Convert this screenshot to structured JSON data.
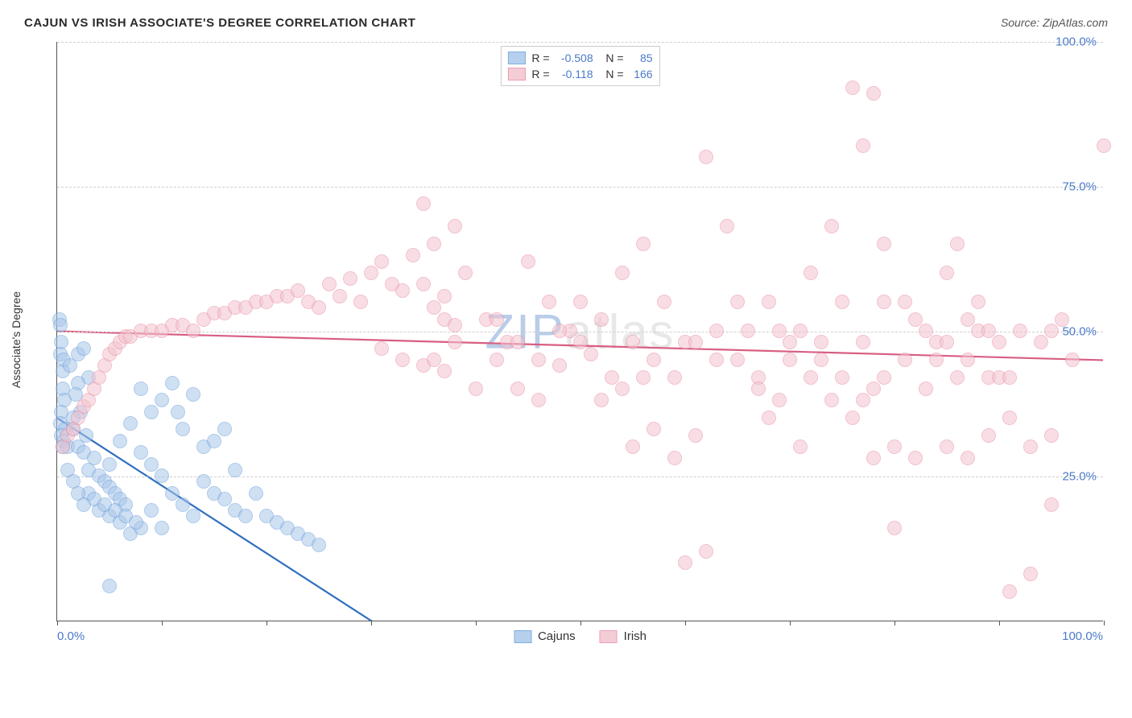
{
  "title": "CAJUN VS IRISH ASSOCIATE'S DEGREE CORRELATION CHART",
  "source_label": "Source: ",
  "source_name": "ZipAtlas.com",
  "watermark": {
    "text_a": "ZIP",
    "text_b": "atlas",
    "color_a": "#b9cde9",
    "color_b": "#e8e8e8"
  },
  "chart": {
    "type": "scatter",
    "y_axis_label": "Associate's Degree",
    "xlim": [
      0,
      100
    ],
    "ylim": [
      0,
      100
    ],
    "x_tick_positions": [
      0,
      10,
      20,
      30,
      40,
      50,
      60,
      70,
      80,
      90,
      100
    ],
    "y_grid_positions": [
      25,
      50,
      75,
      100
    ],
    "y_tick_labels": [
      "25.0%",
      "50.0%",
      "75.0%",
      "100.0%"
    ],
    "x_label_min": "0.0%",
    "x_label_max": "100.0%",
    "background_color": "#ffffff",
    "grid_color": "#d0d0d0",
    "axis_color": "#555555",
    "tick_label_color": "#4a7bc8",
    "point_radius": 9,
    "point_stroke_width": 1.5,
    "trend_line_width": 2.2,
    "series": [
      {
        "name": "Cajuns",
        "fill_color": "#a9c7ea",
        "stroke_color": "#6ea0da",
        "fill_opacity": 0.55,
        "trend_color": "#2f6fc0",
        "trend": {
          "x1": 0,
          "y1": 35,
          "x2": 30,
          "y2": 0,
          "dash_after_x": 30,
          "x2_dash": 40,
          "y2_dash": -11
        },
        "R": "-0.508",
        "N": "85",
        "points": [
          [
            0.2,
            52
          ],
          [
            0.3,
            51
          ],
          [
            0.4,
            48
          ],
          [
            0.3,
            46
          ],
          [
            0.5,
            43
          ],
          [
            0.5,
            40
          ],
          [
            0.7,
            38
          ],
          [
            0.4,
            36
          ],
          [
            0.3,
            34
          ],
          [
            0.8,
            33
          ],
          [
            0.4,
            32
          ],
          [
            0.6,
            31
          ],
          [
            0.5,
            30
          ],
          [
            1.0,
            30
          ],
          [
            0.6,
            45
          ],
          [
            1.5,
            33
          ],
          [
            1.2,
            44
          ],
          [
            2.0,
            46
          ],
          [
            2.5,
            47
          ],
          [
            3.0,
            42
          ],
          [
            2.0,
            41
          ],
          [
            1.8,
            39
          ],
          [
            2.2,
            36
          ],
          [
            2.8,
            32
          ],
          [
            1.5,
            35
          ],
          [
            2.0,
            30
          ],
          [
            2.5,
            29
          ],
          [
            3.5,
            28
          ],
          [
            3.0,
            26
          ],
          [
            4.0,
            25
          ],
          [
            4.5,
            24
          ],
          [
            5.0,
            23
          ],
          [
            5.5,
            22
          ],
          [
            6.0,
            21
          ],
          [
            6.5,
            20
          ],
          [
            5.0,
            27
          ],
          [
            6.0,
            31
          ],
          [
            7.0,
            34
          ],
          [
            8.0,
            40
          ],
          [
            9.0,
            36
          ],
          [
            10.0,
            38
          ],
          [
            11.0,
            41
          ],
          [
            11.5,
            36
          ],
          [
            12.0,
            33
          ],
          [
            13.0,
            39
          ],
          [
            14.0,
            30
          ],
          [
            8.0,
            29
          ],
          [
            9.0,
            27
          ],
          [
            10.0,
            25
          ],
          [
            11.0,
            22
          ],
          [
            12.0,
            20
          ],
          [
            13.0,
            18
          ],
          [
            14.0,
            24
          ],
          [
            15.0,
            22
          ],
          [
            16.0,
            21
          ],
          [
            5.0,
            18
          ],
          [
            6.0,
            17
          ],
          [
            7.0,
            15
          ],
          [
            8.0,
            16
          ],
          [
            9.0,
            19
          ],
          [
            10.0,
            16
          ],
          [
            4.0,
            19
          ],
          [
            3.0,
            22
          ],
          [
            3.5,
            21
          ],
          [
            4.5,
            20
          ],
          [
            5.5,
            19
          ],
          [
            6.5,
            18
          ],
          [
            7.5,
            17
          ],
          [
            5.0,
            6
          ],
          [
            17.0,
            19
          ],
          [
            18.0,
            18
          ],
          [
            19.0,
            22
          ],
          [
            20.0,
            18
          ],
          [
            21.0,
            17
          ],
          [
            22.0,
            16
          ],
          [
            23.0,
            15
          ],
          [
            24.0,
            14
          ],
          [
            25.0,
            13
          ],
          [
            15.0,
            31
          ],
          [
            16.0,
            33
          ],
          [
            17.0,
            26
          ],
          [
            1.0,
            26
          ],
          [
            1.5,
            24
          ],
          [
            2.0,
            22
          ],
          [
            2.5,
            20
          ]
        ]
      },
      {
        "name": "Irish",
        "fill_color": "#f3c4cf",
        "stroke_color": "#e890a5",
        "fill_opacity": 0.55,
        "trend_color": "#d85e82",
        "trend": {
          "x1": 0,
          "y1": 50,
          "x2": 100,
          "y2": 45
        },
        "R": "-0.118",
        "N": "166",
        "points": [
          [
            0.5,
            30
          ],
          [
            1.0,
            32
          ],
          [
            1.5,
            33
          ],
          [
            2.0,
            35
          ],
          [
            2.5,
            37
          ],
          [
            3.0,
            38
          ],
          [
            3.5,
            40
          ],
          [
            4.0,
            42
          ],
          [
            4.5,
            44
          ],
          [
            5.0,
            46
          ],
          [
            5.5,
            47
          ],
          [
            6.0,
            48
          ],
          [
            6.5,
            49
          ],
          [
            7.0,
            49
          ],
          [
            8.0,
            50
          ],
          [
            9.0,
            50
          ],
          [
            10.0,
            50
          ],
          [
            11.0,
            51
          ],
          [
            12.0,
            51
          ],
          [
            13.0,
            50
          ],
          [
            14.0,
            52
          ],
          [
            15.0,
            53
          ],
          [
            16.0,
            53
          ],
          [
            17.0,
            54
          ],
          [
            18.0,
            54
          ],
          [
            19.0,
            55
          ],
          [
            20.0,
            55
          ],
          [
            21.0,
            56
          ],
          [
            22.0,
            56
          ],
          [
            23.0,
            57
          ],
          [
            24.0,
            55
          ],
          [
            25.0,
            54
          ],
          [
            26.0,
            58
          ],
          [
            27.0,
            56
          ],
          [
            28.0,
            59
          ],
          [
            29.0,
            55
          ],
          [
            30.0,
            60
          ],
          [
            31.0,
            62
          ],
          [
            32.0,
            58
          ],
          [
            33.0,
            57
          ],
          [
            34.0,
            63
          ],
          [
            35.0,
            72
          ],
          [
            36.0,
            65
          ],
          [
            37.0,
            56
          ],
          [
            38.0,
            68
          ],
          [
            39.0,
            60
          ],
          [
            35.0,
            58
          ],
          [
            36.0,
            54
          ],
          [
            37.0,
            52
          ],
          [
            38.0,
            51
          ],
          [
            31.0,
            47
          ],
          [
            33.0,
            45
          ],
          [
            35.0,
            44
          ],
          [
            37.0,
            43
          ],
          [
            45.0,
            62
          ],
          [
            47.0,
            55
          ],
          [
            49.0,
            50
          ],
          [
            51.0,
            46
          ],
          [
            53.0,
            42
          ],
          [
            42.0,
            45
          ],
          [
            44.0,
            40
          ],
          [
            46.0,
            38
          ],
          [
            48.0,
            44
          ],
          [
            50.0,
            48
          ],
          [
            52.0,
            52
          ],
          [
            54.0,
            60
          ],
          [
            56.0,
            65
          ],
          [
            58.0,
            55
          ],
          [
            41.0,
            52
          ],
          [
            43.0,
            48
          ],
          [
            55.0,
            30
          ],
          [
            57.0,
            33
          ],
          [
            59.0,
            28
          ],
          [
            61.0,
            32
          ],
          [
            63.0,
            45
          ],
          [
            65.0,
            55
          ],
          [
            67.0,
            42
          ],
          [
            69.0,
            38
          ],
          [
            60.0,
            48
          ],
          [
            62.0,
            80
          ],
          [
            64.0,
            68
          ],
          [
            66.0,
            50
          ],
          [
            68.0,
            35
          ],
          [
            70.0,
            45
          ],
          [
            72.0,
            60
          ],
          [
            74.0,
            68
          ],
          [
            76.0,
            92
          ],
          [
            78.0,
            91
          ],
          [
            73.0,
            48
          ],
          [
            75.0,
            42
          ],
          [
            77.0,
            38
          ],
          [
            79.0,
            55
          ],
          [
            71.0,
            30
          ],
          [
            60.0,
            10
          ],
          [
            62.0,
            12
          ],
          [
            78.0,
            28
          ],
          [
            80.0,
            30
          ],
          [
            82.0,
            52
          ],
          [
            84.0,
            45
          ],
          [
            86.0,
            42
          ],
          [
            88.0,
            50
          ],
          [
            90.0,
            48
          ],
          [
            77.0,
            82
          ],
          [
            79.0,
            65
          ],
          [
            81.0,
            55
          ],
          [
            83.0,
            40
          ],
          [
            85.0,
            60
          ],
          [
            87.0,
            45
          ],
          [
            89.0,
            42
          ],
          [
            91.0,
            35
          ],
          [
            93.0,
            30
          ],
          [
            95.0,
            32
          ],
          [
            80.0,
            16
          ],
          [
            82.0,
            28
          ],
          [
            84.0,
            48
          ],
          [
            86.0,
            65
          ],
          [
            88.0,
            55
          ],
          [
            90.0,
            42
          ],
          [
            92.0,
            50
          ],
          [
            94.0,
            48
          ],
          [
            96.0,
            52
          ],
          [
            100.0,
            82
          ],
          [
            95.0,
            50
          ],
          [
            97.0,
            45
          ],
          [
            85.0,
            30
          ],
          [
            87.0,
            28
          ],
          [
            89.0,
            32
          ],
          [
            91.0,
            5
          ],
          [
            93.0,
            8
          ],
          [
            95.0,
            20
          ],
          [
            68.0,
            55
          ],
          [
            70.0,
            48
          ],
          [
            72.0,
            42
          ],
          [
            74.0,
            38
          ],
          [
            76.0,
            35
          ],
          [
            78.0,
            40
          ],
          [
            65.0,
            45
          ],
          [
            67.0,
            40
          ],
          [
            69.0,
            50
          ],
          [
            56.0,
            42
          ],
          [
            54.0,
            40
          ],
          [
            52.0,
            38
          ],
          [
            50.0,
            55
          ],
          [
            48.0,
            50
          ],
          [
            46.0,
            45
          ],
          [
            44.0,
            48
          ],
          [
            42.0,
            52
          ],
          [
            40.0,
            40
          ],
          [
            38.0,
            48
          ],
          [
            36.0,
            45
          ],
          [
            55.0,
            48
          ],
          [
            57.0,
            45
          ],
          [
            59.0,
            42
          ],
          [
            61.0,
            48
          ],
          [
            63.0,
            50
          ],
          [
            71.0,
            50
          ],
          [
            73.0,
            45
          ],
          [
            75.0,
            55
          ],
          [
            77.0,
            48
          ],
          [
            79.0,
            42
          ],
          [
            81.0,
            45
          ],
          [
            83.0,
            50
          ],
          [
            85.0,
            48
          ],
          [
            87.0,
            52
          ],
          [
            89.0,
            50
          ],
          [
            91.0,
            42
          ]
        ]
      }
    ]
  },
  "legend": {
    "items": [
      {
        "label": "Cajuns",
        "fill": "#a9c7ea",
        "stroke": "#6ea0da"
      },
      {
        "label": "Irish",
        "fill": "#f3c4cf",
        "stroke": "#e890a5"
      }
    ]
  }
}
